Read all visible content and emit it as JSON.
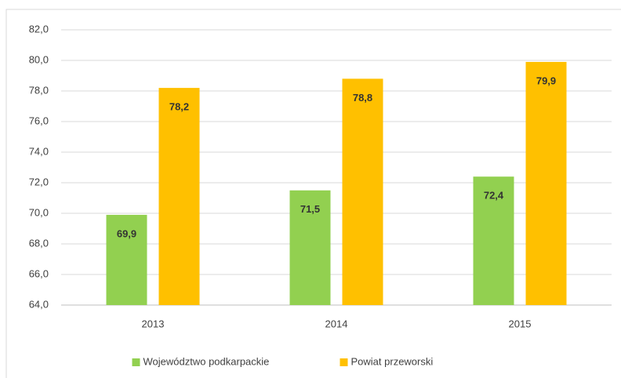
{
  "chart_data": {
    "type": "bar",
    "categories": [
      "2013",
      "2014",
      "2015"
    ],
    "series": [
      {
        "name": "Województwo podkarpackie",
        "color": "#92d050",
        "values": [
          69.9,
          71.5,
          72.4
        ],
        "value_labels": [
          "69,9",
          "71,5",
          "72,4"
        ]
      },
      {
        "name": "Powiat przeworski",
        "color": "#ffc000",
        "values": [
          78.2,
          78.8,
          79.9
        ],
        "value_labels": [
          "78,2",
          "78,8",
          "79,9"
        ]
      }
    ],
    "ylim": [
      64,
      82
    ],
    "yticks": [
      {
        "value": 64,
        "label": "64,0"
      },
      {
        "value": 66,
        "label": "66,0"
      },
      {
        "value": 68,
        "label": "68,0"
      },
      {
        "value": 70,
        "label": "70,0"
      },
      {
        "value": 72,
        "label": "72,0"
      },
      {
        "value": 74,
        "label": "74,0"
      },
      {
        "value": 76,
        "label": "76,0"
      },
      {
        "value": 78,
        "label": "78,0"
      },
      {
        "value": 80,
        "label": "80,0"
      },
      {
        "value": 82,
        "label": "82,0"
      }
    ],
    "grid": true,
    "legend": "bottom"
  }
}
